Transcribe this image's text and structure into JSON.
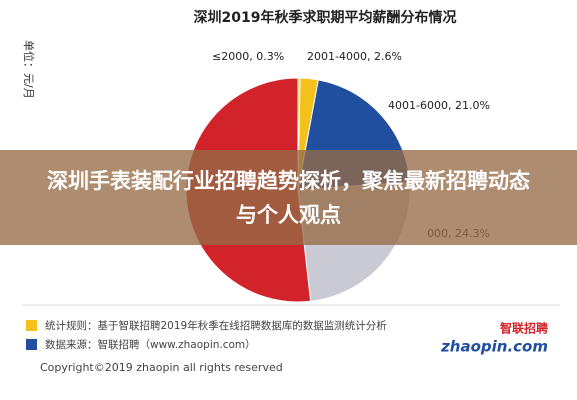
{
  "chart_data": {
    "type": "pie",
    "title": "深圳2019年秋季求职期平均薪酬分布情况",
    "unit_label": "单位：元/月",
    "labels": [
      "≤2000, 0.3%",
      "2001-4000, 2.6%",
      "4001-6000, 21.0%",
      "000, 24.3%",
      null
    ],
    "values": [
      0.3,
      2.6,
      21.0,
      24.3,
      51.8
    ],
    "colors": [
      "#f3c11a",
      "#f3c11a",
      "#1f4f9e",
      "#c9cad3",
      "#d2232a"
    ],
    "notes": [
      "统计规则：基于智联招聘2019年秋季在线招聘数据库的数据监测统计分析",
      "数据来源：智联招聘（www.zhaopin.com）"
    ],
    "note_colors": [
      "#f3c11a",
      "#1f4f9e"
    ],
    "copyright": "Copyright©2019 zhaopin all rights reserved",
    "logo": {
      "latin": "zhaopin.com",
      "chinese": "智联招聘"
    }
  },
  "banner": "深圳手表装配行业招聘趋势探析，聚焦最新招聘动态与个人观点"
}
